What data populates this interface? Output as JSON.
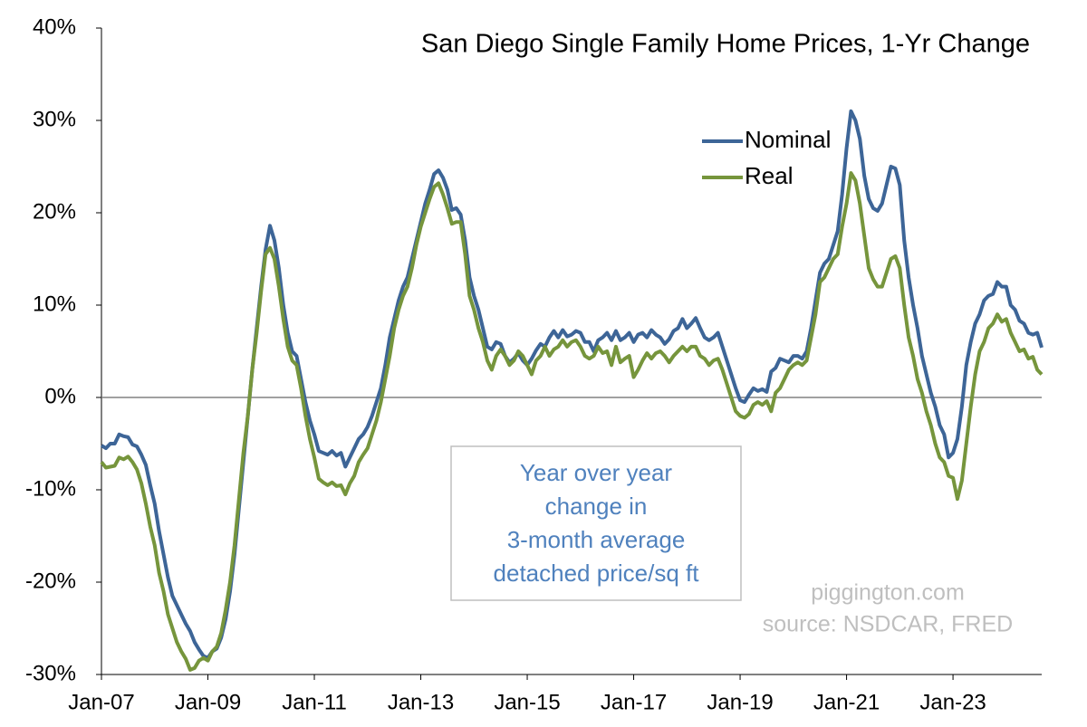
{
  "chart_data": {
    "type": "line",
    "title": "San Diego Single Family Home Prices, 1-Yr Change",
    "annotation": [
      "Year over year",
      "change in",
      "3-month average",
      "detached price/sq ft"
    ],
    "watermark": [
      "piggington.com",
      "source: NSDCAR, FRED"
    ],
    "legend": "upper right",
    "x": [
      "2007-01",
      "2007-02",
      "2007-03",
      "2007-04",
      "2007-05",
      "2007-06",
      "2007-07",
      "2007-08",
      "2007-09",
      "2007-10",
      "2007-11",
      "2007-12",
      "2008-01",
      "2008-02",
      "2008-03",
      "2008-04",
      "2008-05",
      "2008-06",
      "2008-07",
      "2008-08",
      "2008-09",
      "2008-10",
      "2008-11",
      "2008-12",
      "2009-01",
      "2009-02",
      "2009-03",
      "2009-04",
      "2009-05",
      "2009-06",
      "2009-07",
      "2009-08",
      "2009-09",
      "2009-10",
      "2009-11",
      "2009-12",
      "2010-01",
      "2010-02",
      "2010-03",
      "2010-04",
      "2010-05",
      "2010-06",
      "2010-07",
      "2010-08",
      "2010-09",
      "2010-10",
      "2010-11",
      "2010-12",
      "2011-01",
      "2011-02",
      "2011-03",
      "2011-04",
      "2011-05",
      "2011-06",
      "2011-07",
      "2011-08",
      "2011-09",
      "2011-10",
      "2011-11",
      "2011-12",
      "2012-01",
      "2012-02",
      "2012-03",
      "2012-04",
      "2012-05",
      "2012-06",
      "2012-07",
      "2012-08",
      "2012-09",
      "2012-10",
      "2012-11",
      "2012-12",
      "2013-01",
      "2013-02",
      "2013-03",
      "2013-04",
      "2013-05",
      "2013-06",
      "2013-07",
      "2013-08",
      "2013-09",
      "2013-10",
      "2013-11",
      "2013-12",
      "2014-01",
      "2014-02",
      "2014-03",
      "2014-04",
      "2014-05",
      "2014-06",
      "2014-07",
      "2014-08",
      "2014-09",
      "2014-10",
      "2014-11",
      "2014-12",
      "2015-01",
      "2015-02",
      "2015-03",
      "2015-04",
      "2015-05",
      "2015-06",
      "2015-07",
      "2015-08",
      "2015-09",
      "2015-10",
      "2015-11",
      "2015-12",
      "2016-01",
      "2016-02",
      "2016-03",
      "2016-04",
      "2016-05",
      "2016-06",
      "2016-07",
      "2016-08",
      "2016-09",
      "2016-10",
      "2016-11",
      "2016-12",
      "2017-01",
      "2017-02",
      "2017-03",
      "2017-04",
      "2017-05",
      "2017-06",
      "2017-07",
      "2017-08",
      "2017-09",
      "2017-10",
      "2017-11",
      "2017-12",
      "2018-01",
      "2018-02",
      "2018-03",
      "2018-04",
      "2018-05",
      "2018-06",
      "2018-07",
      "2018-08",
      "2018-09",
      "2018-10",
      "2018-11",
      "2018-12",
      "2019-01",
      "2019-02",
      "2019-03",
      "2019-04",
      "2019-05",
      "2019-06",
      "2019-07",
      "2019-08",
      "2019-09",
      "2019-10",
      "2019-11",
      "2019-12",
      "2020-01",
      "2020-02",
      "2020-03",
      "2020-04",
      "2020-05",
      "2020-06",
      "2020-07",
      "2020-08",
      "2020-09",
      "2020-10",
      "2020-11",
      "2020-12",
      "2021-01",
      "2021-02",
      "2021-03",
      "2021-04",
      "2021-05",
      "2021-06",
      "2021-07",
      "2021-08",
      "2021-09",
      "2021-10",
      "2021-11",
      "2021-12",
      "2022-01",
      "2022-02",
      "2022-03",
      "2022-04",
      "2022-05",
      "2022-06",
      "2022-07",
      "2022-08",
      "2022-09",
      "2022-10",
      "2022-11",
      "2022-12",
      "2023-01",
      "2023-02",
      "2023-03",
      "2023-04",
      "2023-05",
      "2023-06",
      "2023-07",
      "2023-08",
      "2023-09",
      "2023-10",
      "2023-11",
      "2023-12",
      "2024-01",
      "2024-02",
      "2024-03",
      "2024-04",
      "2024-05",
      "2024-06",
      "2024-07",
      "2024-08",
      "2024-09"
    ],
    "series": [
      {
        "name": "Nominal",
        "color": "#3d6597",
        "values": [
          -5.2,
          -5.5,
          -5.0,
          -5.0,
          -4.0,
          -4.2,
          -4.3,
          -5.1,
          -5.3,
          -6.2,
          -7.3,
          -9.5,
          -11.5,
          -14.5,
          -17,
          -19.5,
          -21.5,
          -22.5,
          -23.5,
          -24.5,
          -25.3,
          -26.5,
          -27.3,
          -28.0,
          -28.2,
          -27.5,
          -27.2,
          -26,
          -24,
          -21,
          -17,
          -12,
          -7,
          -2,
          3,
          7.5,
          12,
          16,
          18.6,
          17,
          14,
          10,
          7,
          5,
          4.5,
          2,
          -0.5,
          -2.5,
          -4,
          -5.8,
          -6,
          -6.2,
          -5.8,
          -6.3,
          -6.0,
          -7.5,
          -6.5,
          -5.5,
          -4.5,
          -4.0,
          -3.2,
          -2,
          -0.5,
          1,
          3.5,
          6.5,
          8.5,
          10.5,
          12,
          13,
          15,
          17,
          19,
          21,
          22.5,
          24.2,
          24.6,
          23.8,
          22.5,
          20.3,
          20.5,
          19.8,
          17,
          13,
          11,
          9.5,
          7.5,
          5.5,
          5.2,
          6,
          5.8,
          4.5,
          3.8,
          4.2,
          4.8,
          4.0,
          3.5,
          4.2,
          5.1,
          5.8,
          5.5,
          6.5,
          7.2,
          6.5,
          7.3,
          6.6,
          6.8,
          7.2,
          7.0,
          6.0,
          6.0,
          5.0,
          6.2,
          6.5,
          7.0,
          6.2,
          7.2,
          6.2,
          6.5,
          7.0,
          6.0,
          6.8,
          7.0,
          6.5,
          7.3,
          6.8,
          6.5,
          5.8,
          6.3,
          7.2,
          7.5,
          8.5,
          7.5,
          8.0,
          8.6,
          7.5,
          6.5,
          6.2,
          6.5,
          7.0,
          5.5,
          4.0,
          2.5,
          1.0,
          -0.3,
          -0.5,
          0.3,
          1.0,
          0.7,
          0.9,
          0.6,
          2.8,
          3.2,
          4.2,
          4.0,
          3.8,
          4.5,
          4.5,
          4.2,
          5.0,
          7.5,
          10.5,
          13.5,
          14.5,
          15.0,
          16.5,
          18,
          22,
          27,
          31,
          30,
          28,
          24,
          21.5,
          20.5,
          20.2,
          21,
          23,
          25,
          24.8,
          23,
          17,
          13,
          10,
          7.5,
          4.5,
          2.5,
          0.5,
          -1.0,
          -3.0,
          -4.0,
          -6.5,
          -6,
          -4.5,
          -1,
          3.5,
          6,
          8,
          9,
          10.5,
          11,
          11.2,
          12.5,
          12,
          12,
          10,
          9.5,
          8.3,
          8,
          7,
          6.8,
          7.0,
          5.4
        ]
      },
      {
        "name": "Real",
        "color": "#76953c",
        "values": [
          -7.0,
          -7.6,
          -7.5,
          -7.4,
          -6.5,
          -6.7,
          -6.4,
          -7.0,
          -7.8,
          -9.3,
          -11.5,
          -14,
          -16,
          -19,
          -21,
          -23.5,
          -25,
          -26.5,
          -27.5,
          -28.3,
          -29.5,
          -29.3,
          -28.5,
          -28.2,
          -28.5,
          -27.5,
          -27,
          -25.5,
          -23,
          -20,
          -16,
          -11,
          -6,
          -2,
          3,
          7,
          11.5,
          15.5,
          16.2,
          15,
          12,
          8.5,
          5.5,
          4,
          3.5,
          1,
          -2,
          -4.5,
          -6.5,
          -8.8,
          -9.2,
          -9.5,
          -9.2,
          -9.6,
          -9.5,
          -10.5,
          -9.3,
          -8.5,
          -7.0,
          -6.2,
          -5.5,
          -4,
          -2.5,
          -0.5,
          2,
          4.5,
          7.5,
          9.5,
          11,
          12,
          14,
          16.5,
          18.5,
          20,
          21.5,
          22.8,
          23.2,
          22.0,
          20.5,
          18.8,
          19,
          19,
          15.5,
          11,
          9.5,
          7.5,
          6,
          4,
          3,
          4.5,
          5.2,
          4.5,
          3.5,
          4,
          5,
          4.5,
          3.5,
          2.5,
          4,
          4.5,
          5.5,
          4.5,
          5.2,
          5.5,
          6.2,
          5.5,
          6,
          6.2,
          5.5,
          4.5,
          4.2,
          4.5,
          5.5,
          4.8,
          5.0,
          3.5,
          5.5,
          3.8,
          4.2,
          4.5,
          2.2,
          3.0,
          4.0,
          4.8,
          4.2,
          4.8,
          5.0,
          4.5,
          3.8,
          4.5,
          5.0,
          5.5,
          5.0,
          5.5,
          5.5,
          4.5,
          4.2,
          3.5,
          4.0,
          4.2,
          3.0,
          1.5,
          0.0,
          -1.5,
          -2.0,
          -2.2,
          -1.8,
          -0.8,
          -0.5,
          -0.8,
          -0.4,
          -1.5,
          0.5,
          1.0,
          2.0,
          3.0,
          3.5,
          3.8,
          3.5,
          4.0,
          6.5,
          9.0,
          12.5,
          13.0,
          14.0,
          15.0,
          15.5,
          18.5,
          21,
          24.3,
          23.5,
          21,
          17.5,
          14,
          12.8,
          12,
          12,
          13.5,
          15,
          15.3,
          14,
          10,
          6.5,
          4.5,
          2.0,
          0.5,
          -1.5,
          -3,
          -5,
          -6.5,
          -7,
          -8.5,
          -8.7,
          -11,
          -9,
          -5,
          -1,
          2.5,
          5,
          6,
          7.5,
          8,
          9,
          8.2,
          8.5,
          7,
          6,
          5,
          5.2,
          4.2,
          4.4,
          3.0,
          2.5
        ]
      }
    ],
    "xlim": [
      "2007-01",
      "2024-09"
    ],
    "xticks": [
      {
        "value": "2007-01",
        "label": "Jan-07"
      },
      {
        "value": "2009-01",
        "label": "Jan-09"
      },
      {
        "value": "2011-01",
        "label": "Jan-11"
      },
      {
        "value": "2013-01",
        "label": "Jan-13"
      },
      {
        "value": "2015-01",
        "label": "Jan-15"
      },
      {
        "value": "2017-01",
        "label": "Jan-17"
      },
      {
        "value": "2019-01",
        "label": "Jan-19"
      },
      {
        "value": "2021-01",
        "label": "Jan-21"
      },
      {
        "value": "2023-01",
        "label": "Jan-23"
      }
    ],
    "ylim": [
      -30,
      40
    ],
    "yticks": [
      {
        "value": -30,
        "label": "-30%"
      },
      {
        "value": -20,
        "label": "-20%"
      },
      {
        "value": -10,
        "label": "-10%"
      },
      {
        "value": 0,
        "label": "0%"
      },
      {
        "value": 10,
        "label": "10%"
      },
      {
        "value": 20,
        "label": "20%"
      },
      {
        "value": 30,
        "label": "30%"
      },
      {
        "value": 40,
        "label": "40%"
      }
    ],
    "grid": false
  }
}
